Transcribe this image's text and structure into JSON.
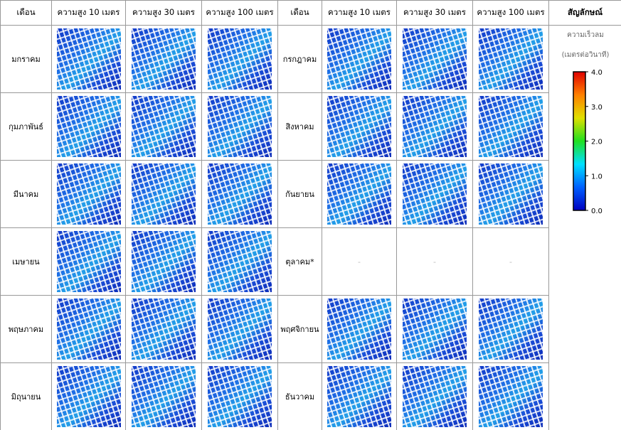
{
  "table": {
    "header": [
      "เดือน",
      "ความสูง 10 เมตร",
      "ความสูง 30 เมตร",
      "ความสูง 100 เมตร",
      "เดือน",
      "ความสูง 10 เมตร",
      "ความสูง 30 เมตร",
      "ความสูง 100 เมตร",
      "สัญลักษณ์"
    ],
    "rows": [
      {
        "left_month": "มกราคม",
        "right_month": "กรกฎาคม"
      },
      {
        "left_month": "กุมภาพันธ์",
        "right_month": "สิงหาคม"
      },
      {
        "left_month": "มีนาคม",
        "right_month": "กันยายน"
      },
      {
        "left_month": "เมษายน",
        "right_month": "ตุลาคม*",
        "right_cells": [
          "-",
          "-",
          "-"
        ]
      },
      {
        "left_month": "พฤษภาคม",
        "right_month": "พฤศจิกายน"
      },
      {
        "left_month": "มิถุนายน",
        "right_month": "ธันวาคม"
      }
    ]
  },
  "legend": {
    "title": "ความเร็วลม",
    "unit": "(เมตรต่อวินาที)",
    "range": [
      0,
      4
    ],
    "ticks": [
      {
        "value": 4,
        "label": "4.0"
      },
      {
        "value": 3,
        "label": "3.0"
      },
      {
        "value": 2,
        "label": "2.0"
      },
      {
        "value": 1,
        "label": "1.0"
      },
      {
        "value": 0,
        "label": "0.0"
      }
    ],
    "colors": [
      "#0000c0",
      "#0060ff",
      "#00e0ff",
      "#20e020",
      "#e0e000",
      "#ff8000",
      "#e00000"
    ]
  }
}
